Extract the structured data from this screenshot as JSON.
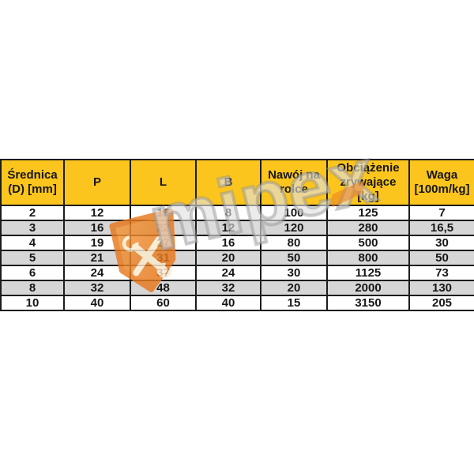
{
  "watermark": {
    "brand_text": "mipex",
    "icon": "crossed-tools-shield-icon",
    "icon_color": "#ED7B23",
    "text_color": "#ABABAB"
  },
  "table": {
    "header_bg": "#FBC51D",
    "stripe_bg": "#D6D6D6",
    "headers": [
      "Średnica (D) [mm]",
      "P",
      "L",
      "B",
      "Nawój na rolce",
      "Obciążenie zrywające [kg]",
      "Waga [100m/kg]"
    ],
    "rows": [
      [
        "2",
        "12",
        "16",
        "8",
        "100",
        "125",
        "7"
      ],
      [
        "3",
        "16",
        "22",
        "12",
        "120",
        "280",
        "16,5"
      ],
      [
        "4",
        "19",
        "27",
        "16",
        "80",
        "500",
        "30"
      ],
      [
        "5",
        "21",
        "31",
        "20",
        "50",
        "800",
        "50"
      ],
      [
        "6",
        "24",
        "37",
        "24",
        "30",
        "1125",
        "73"
      ],
      [
        "8",
        "32",
        "48",
        "32",
        "20",
        "2000",
        "130"
      ],
      [
        "10",
        "40",
        "60",
        "40",
        "15",
        "3150",
        "205"
      ]
    ]
  },
  "chart_data": {
    "type": "table",
    "columns": [
      "Średnica (D) [mm]",
      "P",
      "L",
      "B",
      "Nawój na rolce",
      "Obciążenie zrywające [kg]",
      "Waga [100m/kg]"
    ],
    "rows": [
      [
        2,
        12,
        16,
        8,
        100,
        125,
        7
      ],
      [
        3,
        16,
        22,
        12,
        120,
        280,
        16.5
      ],
      [
        4,
        19,
        27,
        16,
        80,
        500,
        30
      ],
      [
        5,
        21,
        31,
        20,
        50,
        800,
        50
      ],
      [
        6,
        24,
        37,
        24,
        30,
        1125,
        73
      ],
      [
        8,
        32,
        48,
        32,
        20,
        2000,
        130
      ],
      [
        10,
        40,
        60,
        40,
        15,
        3150,
        205
      ]
    ]
  }
}
